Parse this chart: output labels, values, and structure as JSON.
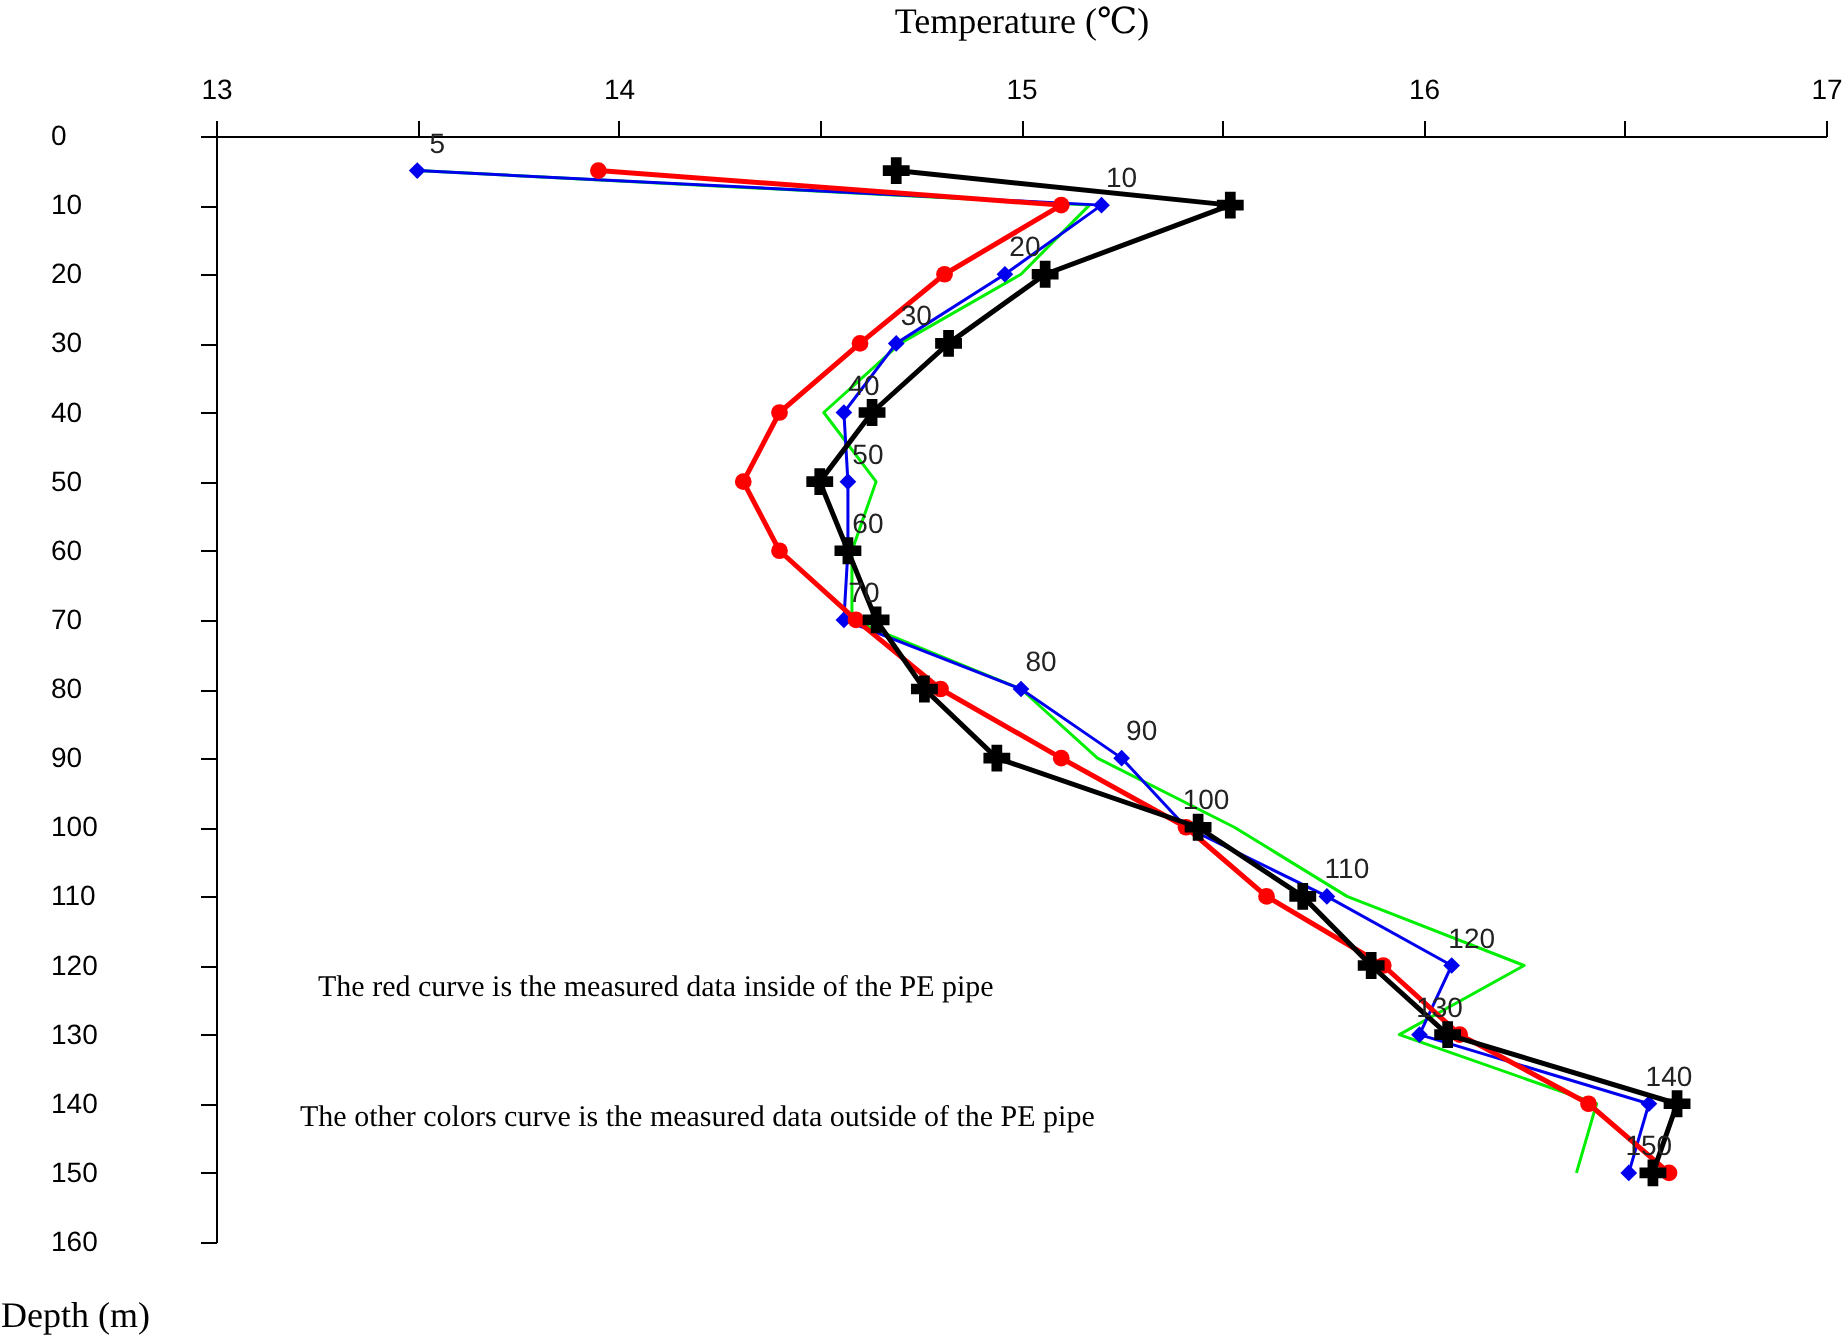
{
  "chart_data": {
    "type": "line",
    "xlabel": "Temperature (℃)",
    "ylabel": "Depth (m)",
    "xlim": [
      13,
      17
    ],
    "xticks": [
      13,
      {
        "value": 13.5,
        "label": null
      },
      14,
      {
        "value": 14.5,
        "label": null
      },
      15,
      {
        "value": 15.5,
        "label": null
      },
      16,
      {
        "value": 16.5,
        "label": null
      },
      17
    ],
    "ylim": [
      160,
      0
    ],
    "yticks": [
      0,
      10,
      20,
      30,
      40,
      50,
      60,
      70,
      80,
      90,
      100,
      110,
      120,
      130,
      140,
      150,
      160
    ],
    "series": [
      {
        "color": "#00ee00",
        "marker": "none",
        "x": [
          13.5,
          15.17,
          15.0,
          14.7,
          14.51,
          14.64,
          14.58,
          14.58,
          15.0,
          15.19,
          15.53,
          15.81,
          16.25,
          15.94,
          16.43,
          16.38
        ],
        "values": [
          5,
          10,
          20,
          30,
          40,
          50,
          60,
          70,
          80,
          90,
          100,
          110,
          120,
          130,
          140,
          150
        ]
      },
      {
        "color": "#0000ee",
        "marker": "diamond",
        "x": [
          13.5,
          15.2,
          14.96,
          14.69,
          14.56,
          14.57,
          14.57,
          14.56,
          15.0,
          15.25,
          15.41,
          15.76,
          16.07,
          15.99,
          16.56,
          16.51
        ],
        "values": [
          5,
          10,
          20,
          30,
          40,
          50,
          60,
          70,
          80,
          90,
          100,
          110,
          120,
          130,
          140,
          150
        ]
      },
      {
        "color": "#ff0000",
        "marker": "circle",
        "x": [
          13.95,
          15.1,
          14.81,
          14.6,
          14.4,
          14.31,
          14.4,
          14.59,
          14.8,
          15.1,
          15.41,
          15.61,
          15.9,
          16.09,
          16.41,
          16.61
        ],
        "values": [
          5,
          10,
          20,
          30,
          40,
          50,
          60,
          70,
          80,
          90,
          100,
          110,
          120,
          130,
          140,
          150
        ]
      },
      {
        "color": "#000000",
        "marker": "cross",
        "x": [
          14.69,
          15.52,
          15.06,
          14.82,
          14.63,
          14.5,
          14.57,
          14.64,
          14.76,
          14.94,
          15.44,
          15.7,
          15.87,
          16.06,
          16.63,
          16.57
        ],
        "values": [
          5,
          10,
          20,
          30,
          40,
          50,
          60,
          70,
          80,
          90,
          100,
          110,
          120,
          130,
          140,
          150
        ]
      }
    ],
    "annotations": [
      {
        "text": "5",
        "x": 13.5,
        "y": 5
      },
      {
        "text": "10",
        "x": 15.2,
        "y": 10
      },
      {
        "text": "20",
        "x": 14.96,
        "y": 20
      },
      {
        "text": "30",
        "x": 14.69,
        "y": 30
      },
      {
        "text": "40",
        "x": 14.56,
        "y": 40
      },
      {
        "text": "50",
        "x": 14.57,
        "y": 50
      },
      {
        "text": "60",
        "x": 14.57,
        "y": 60
      },
      {
        "text": "70",
        "x": 14.56,
        "y": 70
      },
      {
        "text": "80",
        "x": 15.0,
        "y": 80
      },
      {
        "text": "90",
        "x": 15.25,
        "y": 90
      },
      {
        "text": "100",
        "x": 15.41,
        "y": 100
      },
      {
        "text": "110",
        "x": 15.76,
        "y": 110
      },
      {
        "text": "120",
        "x": 16.07,
        "y": 120
      },
      {
        "text": "130",
        "x": 15.99,
        "y": 130
      },
      {
        "text": "140",
        "x": 16.56,
        "y": 140
      },
      {
        "text": "150",
        "x": 16.51,
        "y": 150
      },
      "The red curve is the measured data inside of the PE pipe",
      "The other colors curve is the measured data outside of the PE pipe"
    ]
  }
}
